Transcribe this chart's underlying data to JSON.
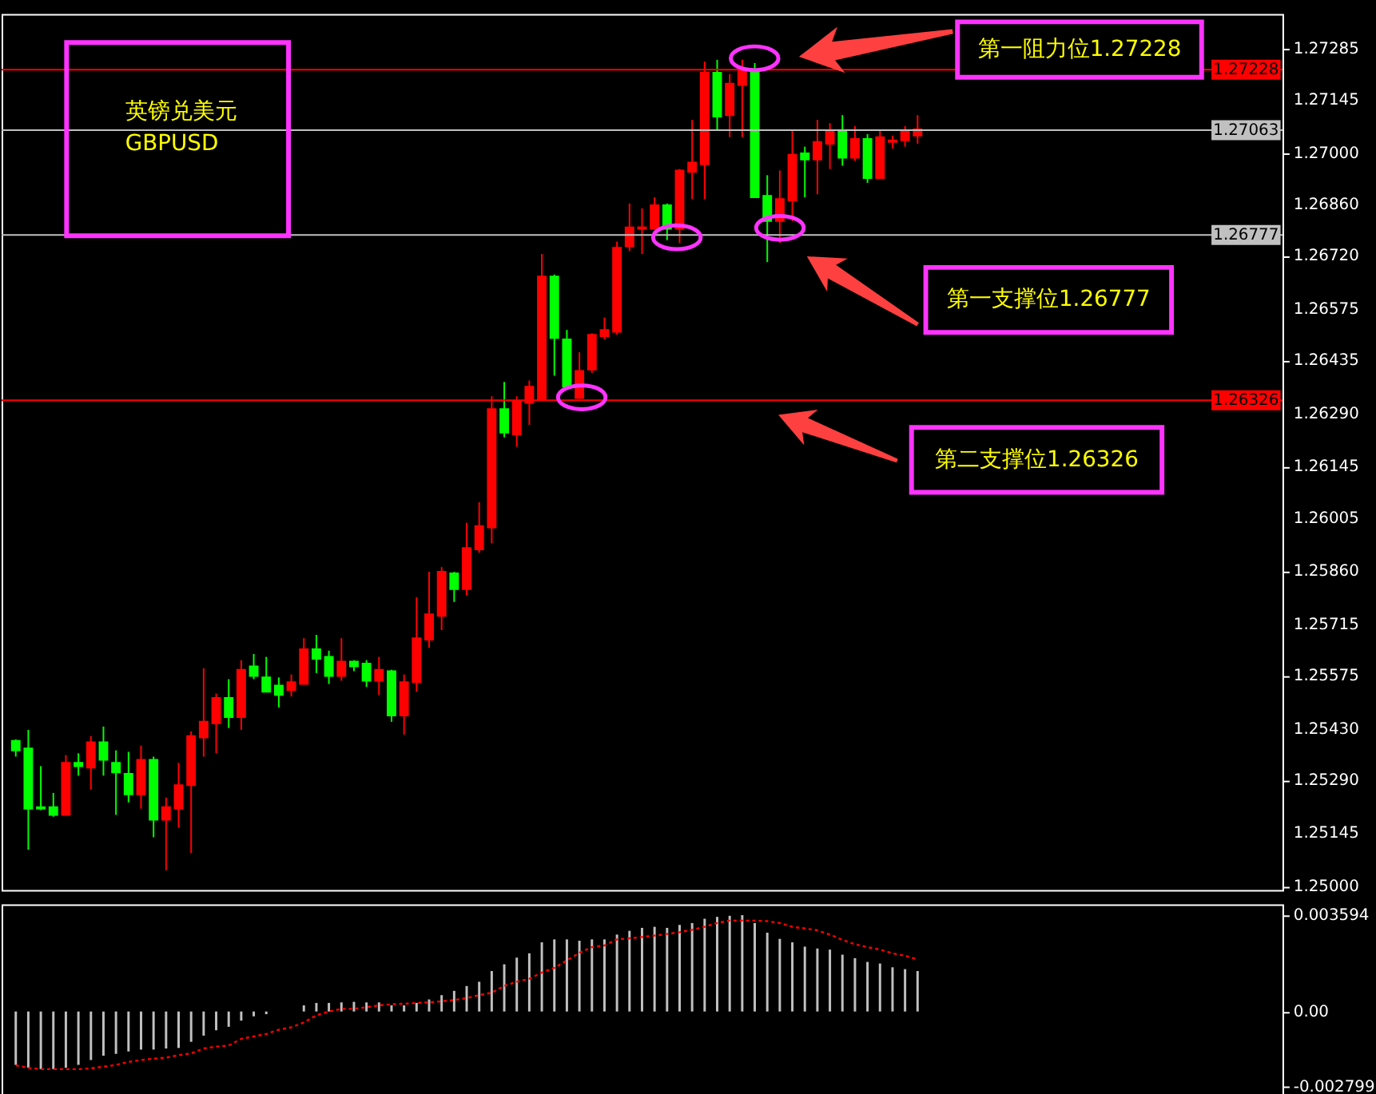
{
  "chart_data": [
    {
      "type": "candlestick",
      "title": "英镑兑美元",
      "subtitle": "GBPUSD",
      "categories": [
        null,
        null,
        null,
        null,
        null,
        null,
        null,
        null,
        null,
        null,
        null,
        null,
        null,
        null,
        null,
        null,
        null,
        null,
        null,
        null,
        null,
        null,
        null,
        null,
        null,
        null,
        null,
        null,
        null,
        null,
        null,
        null,
        null,
        null,
        null,
        null,
        null,
        null,
        null,
        null,
        null,
        null,
        null,
        null,
        null,
        null,
        null,
        null,
        null,
        null,
        null,
        null,
        null,
        null,
        null,
        null,
        null,
        null,
        null,
        null,
        null,
        null,
        null,
        null,
        null,
        null,
        null,
        null,
        null,
        null,
        null,
        null,
        null,
        null,
        null,
        null,
        null,
        null,
        null,
        null,
        null,
        null,
        null,
        null,
        null,
        null,
        null,
        null,
        null,
        null,
        null,
        null,
        null,
        null,
        null,
        null,
        null,
        null,
        null,
        null,
        null
      ],
      "ohlc": [
        [
          1.25397,
          1.25401,
          1.25354,
          1.25371
        ],
        [
          1.25376,
          1.25427,
          1.251,
          1.25212
        ],
        [
          1.25216,
          1.25328,
          1.25208,
          1.25212
        ],
        [
          1.25216,
          1.25255,
          1.2519,
          1.25195
        ],
        [
          1.25195,
          1.25358,
          1.25195,
          1.25337
        ],
        [
          1.25337,
          1.25363,
          1.25302,
          1.25328
        ],
        [
          1.25324,
          1.2541,
          1.25264,
          1.25393
        ],
        [
          1.25393,
          1.25436,
          1.25302,
          1.25345
        ],
        [
          1.25337,
          1.25371,
          1.25195,
          1.25311
        ],
        [
          1.25307,
          1.25367,
          1.25229,
          1.25251
        ],
        [
          1.25251,
          1.25384,
          1.25212,
          1.25345
        ],
        [
          1.25345,
          1.25354,
          1.25134,
          1.25182
        ],
        [
          1.25182,
          1.25242,
          1.25044,
          1.25216
        ],
        [
          1.25212,
          1.25337,
          1.2516,
          1.25276
        ],
        [
          1.25276,
          1.25423,
          1.25091,
          1.2541
        ],
        [
          1.25406,
          1.25595,
          1.25354,
          1.25449
        ],
        [
          1.25445,
          1.25526,
          1.25363,
          1.25514
        ],
        [
          1.25514,
          1.25565,
          1.25432,
          1.25462
        ],
        [
          1.25462,
          1.25617,
          1.25427,
          1.25591
        ],
        [
          1.256,
          1.25634,
          1.25565,
          1.25574
        ],
        [
          1.2557,
          1.25626,
          1.25531,
          1.25531
        ],
        [
          1.25548,
          1.2557,
          1.25488,
          1.25522
        ],
        [
          1.25535,
          1.25578,
          1.25518,
          1.25557
        ],
        [
          1.25552,
          1.25677,
          1.25552,
          1.25647
        ],
        [
          1.25647,
          1.25686,
          1.25582,
          1.25621
        ],
        [
          1.25626,
          1.25643,
          1.25552,
          1.25574
        ],
        [
          1.25574,
          1.25677,
          1.25561,
          1.25613
        ],
        [
          1.25613,
          1.25617,
          1.25587,
          1.256
        ],
        [
          1.25608,
          1.25617,
          1.25544,
          1.25561
        ],
        [
          1.25561,
          1.25626,
          1.25522,
          1.25591
        ],
        [
          1.25587,
          1.25591,
          1.25449,
          1.25466
        ],
        [
          1.25466,
          1.25578,
          1.25414,
          1.25557
        ],
        [
          1.25557,
          1.25789,
          1.25531,
          1.25677
        ],
        [
          1.25673,
          1.25858,
          1.25651,
          1.25742
        ],
        [
          1.25738,
          1.25871,
          1.25699,
          1.25858
        ],
        [
          1.25854,
          1.25858,
          1.25776,
          1.25811
        ],
        [
          1.25811,
          1.25992,
          1.25794,
          1.25923
        ],
        [
          1.25919,
          1.26048,
          1.2591,
          1.25983
        ],
        [
          1.25979,
          1.26337,
          1.25936,
          1.26302
        ],
        [
          1.26302,
          1.26376,
          1.26225,
          1.26238
        ],
        [
          1.26233,
          1.26337,
          1.26199,
          1.26324
        ],
        [
          1.26319,
          1.2638,
          1.26259,
          1.26363
        ],
        [
          1.26328,
          1.26725,
          1.26328,
          1.26664
        ],
        [
          1.26664,
          1.26669,
          1.26393,
          1.26496
        ],
        [
          1.26492,
          1.26518,
          1.26363,
          1.26363
        ],
        [
          1.26332,
          1.26457,
          1.26332,
          1.26406
        ],
        [
          1.2641,
          1.26509,
          1.26401,
          1.26505
        ],
        [
          1.26501,
          1.26552,
          1.26492,
          1.26518
        ],
        [
          1.26513,
          1.26759,
          1.26505,
          1.26742
        ],
        [
          1.26746,
          1.26863,
          1.26733,
          1.26798
        ],
        [
          1.26794,
          1.2685,
          1.26725,
          1.26798
        ],
        [
          1.26794,
          1.2688,
          1.26794,
          1.26858
        ],
        [
          1.26858,
          1.26863,
          1.26763,
          1.26794
        ],
        [
          1.26794,
          1.26957,
          1.26755,
          1.26953
        ],
        [
          1.26949,
          1.27091,
          1.26875,
          1.26975
        ],
        [
          1.2697,
          1.2725,
          1.26875,
          1.2722
        ],
        [
          1.2722,
          1.27255,
          1.27065,
          1.271
        ],
        [
          1.27104,
          1.27216,
          1.27044,
          1.2719
        ],
        [
          1.27186,
          1.27255,
          1.27044,
          1.27229
        ],
        [
          1.27229,
          1.27246,
          1.2688,
          1.2688
        ],
        [
          1.26884,
          1.2694,
          1.26703,
          1.26815
        ],
        [
          1.26815,
          1.26953,
          1.26755,
          1.26875
        ],
        [
          1.26871,
          1.27065,
          1.26815,
          1.26996
        ],
        [
          1.27,
          1.27018,
          1.2688,
          1.26983
        ],
        [
          1.26983,
          1.27091,
          1.26888,
          1.27031
        ],
        [
          1.27026,
          1.27082,
          1.26957,
          1.27061
        ],
        [
          1.27061,
          1.27104,
          1.26966,
          1.26988
        ],
        [
          1.26988,
          1.27074,
          1.26979,
          1.27039
        ],
        [
          1.27039,
          1.27052,
          1.26919,
          1.26932
        ],
        [
          1.26932,
          1.27065,
          1.26932,
          1.27044
        ],
        [
          1.27031,
          1.27048,
          1.27013,
          1.27035
        ],
        [
          1.27035,
          1.27074,
          1.27018,
          1.27061
        ],
        [
          1.27048,
          1.27104,
          1.27026,
          1.27065
        ],
        null,
        null,
        null,
        null,
        null,
        null,
        null,
        null,
        null,
        null,
        null,
        null,
        null,
        null,
        null,
        null,
        null,
        null,
        null,
        null,
        null,
        null,
        null,
        null,
        null,
        null,
        null,
        null
      ],
      "colors": [
        "#00ff00",
        "#00ff00",
        "#00ff00",
        "#00ff00",
        "#ff0000",
        "#00ff00",
        "#ff0000",
        "#00ff00",
        "#00ff00",
        "#00ff00",
        "#ff0000",
        "#00ff00",
        "#ff0000",
        "#ff0000",
        "#ff0000",
        "#ff0000",
        "#ff0000",
        "#00ff00",
        "#ff0000",
        "#00ff00",
        "#00ff00",
        "#00ff00",
        "#ff0000",
        "#ff0000",
        "#00ff00",
        "#00ff00",
        "#ff0000",
        "#00ff00",
        "#00ff00",
        "#ff0000",
        "#00ff00",
        "#ff0000",
        "#ff0000",
        "#ff0000",
        "#ff0000",
        "#00ff00",
        "#ff0000",
        "#ff0000",
        "#ff0000",
        "#00ff00",
        "#ff0000",
        "#ff0000",
        "#ff0000",
        "#00ff00",
        "#00ff00",
        "#ff0000",
        "#ff0000",
        "#ff0000",
        "#ff0000",
        "#ff0000",
        "#ff0000",
        "#ff0000",
        "#00ff00",
        "#ff0000",
        "#ff0000",
        "#ff0000",
        "#00ff00",
        "#ff0000",
        "#ff0000",
        "#00ff00",
        "#00ff00",
        "#ff0000",
        "#ff0000",
        "#00ff00",
        "#ff0000",
        "#ff0000",
        "#00ff00",
        "#ff0000",
        "#00ff00",
        "#ff0000",
        "#ff0000",
        "#ff0000",
        "#ff0000",
        null,
        null,
        null,
        null,
        null,
        null,
        null,
        null,
        null,
        null,
        null,
        null,
        null,
        null,
        null,
        null,
        null,
        null,
        null,
        null,
        null,
        null,
        null,
        null,
        null,
        null,
        null,
        null
      ],
      "ylim": [
        1.2499,
        1.2738
      ],
      "yticks": [
        1.27285,
        1.27145,
        {
          "value": 1.27,
          "label": "1.27000"
        },
        {
          "value": 1.2686,
          "label": "1.26860"
        },
        {
          "value": 1.2672,
          "label": "1.26720"
        },
        1.26575,
        1.26435,
        {
          "value": 1.2629,
          "label": "1.26290"
        },
        1.26145,
        1.26005,
        {
          "value": 1.2586,
          "label": "1.25860"
        },
        1.25715,
        1.25575,
        {
          "value": 1.2543,
          "label": "1.25430"
        },
        {
          "value": 1.2529,
          "label": "1.25290"
        },
        1.25145,
        {
          "value": 1.25,
          "label": "1.25000"
        }
      ],
      "ref_lines": [
        {
          "axis": "y",
          "value": 1.27228,
          "label": "1.27228",
          "color": "#ff0000"
        },
        {
          "axis": "y",
          "value": 1.27063,
          "label": "1.27063",
          "color": "#c0c0c0"
        },
        {
          "axis": "y",
          "value": 1.26777,
          "label": "1.26777",
          "color": "#c0c0c0"
        },
        {
          "axis": "y",
          "value": 1.26326,
          "label": "1.26326",
          "color": "#ff0000"
        }
      ],
      "annotations": [
        "第一阻力位1.27228",
        "第一支撑位1.26777",
        "第二支撑位1.26326"
      ]
    },
    {
      "type": "bar",
      "categories": [
        null,
        null,
        null,
        null,
        null,
        null,
        null,
        null,
        null,
        null,
        null,
        null,
        null,
        null,
        null,
        null,
        null,
        null,
        null,
        null,
        null,
        null,
        null,
        null,
        null,
        null,
        null,
        null,
        null,
        null,
        null,
        null,
        null,
        null,
        null,
        null,
        null,
        null,
        null,
        null,
        null,
        null,
        null,
        null,
        null,
        null,
        null,
        null,
        null,
        null,
        null,
        null,
        null,
        null,
        null,
        null,
        null,
        null,
        null,
        null,
        null,
        null,
        null,
        null,
        null,
        null,
        null,
        null,
        null,
        null,
        null,
        null,
        null,
        null,
        null,
        null,
        null,
        null,
        null,
        null,
        null,
        null,
        null,
        null,
        null,
        null,
        null,
        null,
        null,
        null,
        null,
        null,
        null,
        null,
        null,
        null,
        null,
        null,
        null,
        null,
        null
      ],
      "series": [
        {
          "color": "#c0c0c0",
          "values": [
            -0.00199,
            -0.0021,
            -0.00215,
            -0.00215,
            -0.0021,
            -0.00199,
            -0.00181,
            -0.00165,
            -0.00158,
            -0.00149,
            -0.00142,
            -0.00142,
            -0.00138,
            -0.00136,
            -0.00113,
            -0.0009,
            -0.0007,
            -0.00057,
            -0.00034,
            -0.00018,
            -0.0001,
            0,
            0,
            0.00023,
            0.00032,
            0.00032,
            0.00034,
            0.00036,
            0.00034,
            0.00034,
            0.00023,
            0.00023,
            0.00032,
            0.00045,
            0.00061,
            0.00077,
            0.00095,
            0.00111,
            0.00151,
            0.00176,
            0.00201,
            0.00217,
            0.00258,
            0.00269,
            0.00269,
            0.00264,
            0.00269,
            0.00269,
            0.00287,
            0.00301,
            0.00312,
            0.00316,
            0.00312,
            0.00323,
            0.0033,
            0.00346,
            0.00353,
            0.00357,
            0.003594,
            0.0033,
            0.00294,
            0.00271,
            0.00258,
            0.00242,
            0.00235,
            0.00231,
            0.00212,
            0.00199,
            0.00185,
            0.00179,
            0.00165,
            0.00158,
            0.00151,
            null,
            null,
            null,
            null,
            null,
            null,
            null,
            null,
            null,
            null,
            null,
            null,
            null,
            null,
            null,
            null,
            null,
            null,
            null,
            null,
            null,
            null,
            null,
            null,
            null,
            null,
            null,
            null
          ]
        },
        {
          "type": "line",
          "color": "#ff0000",
          "values": [
            -0.00201,
            -0.0021,
            -0.00215,
            -0.00215,
            -0.00215,
            -0.00215,
            -0.00212,
            -0.00206,
            -0.00199,
            -0.00188,
            -0.00181,
            -0.00176,
            -0.00172,
            -0.00163,
            -0.00156,
            -0.00138,
            -0.00131,
            -0.00127,
            -0.00102,
            -0.00093,
            -0.00084,
            -0.00068,
            -0.00059,
            -0.00041,
            -0.00014,
            0,
            0.0001,
            0.0001,
            0.00016,
            0.00023,
            0.00027,
            0.00029,
            0.00032,
            0.00034,
            0.00038,
            0.00043,
            0.0005,
            0.00061,
            0.0007,
            0.00095,
            0.00111,
            0.00122,
            0.00145,
            0.00163,
            0.0019,
            0.00219,
            0.0024,
            0.00246,
            0.00269,
            0.00273,
            0.00278,
            0.00283,
            0.00289,
            0.00296,
            0.00305,
            0.00316,
            0.0033,
            0.00339,
            0.00339,
            0.00339,
            0.00337,
            0.0033,
            0.00316,
            0.0031,
            0.00303,
            0.00287,
            0.00267,
            0.00251,
            0.0024,
            0.00231,
            0.00217,
            0.00208,
            0.00194,
            null,
            null,
            null,
            null,
            null,
            null,
            null,
            null,
            null,
            null,
            null,
            null,
            null,
            null,
            null,
            null,
            null,
            null,
            null,
            null,
            null,
            null,
            null,
            null,
            null,
            null,
            null,
            null
          ]
        }
      ],
      "line_style": "dotted",
      "ylim": [
        -0.00315,
        0.004
      ],
      "yticks": [
        0.003594,
        {
          "value": 0,
          "label": "0.00"
        },
        -0.002799
      ]
    }
  ]
}
